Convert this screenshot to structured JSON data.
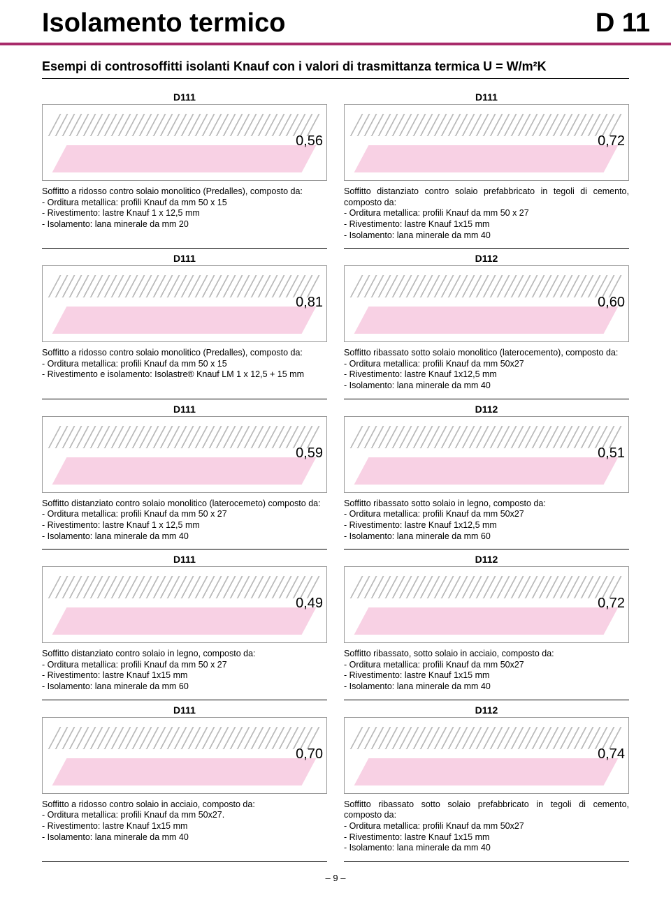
{
  "header": {
    "title": "Isolamento termico",
    "code": "D 11"
  },
  "subtitle": "Esempi di controsoffitti isolanti Knauf con i valori di trasmittanza termica U = W/m²K",
  "rows": [
    {
      "left": {
        "label": "D111",
        "u": "0,56",
        "desc": "Soffitto a ridosso contro solaio monolitico (Predalles), composto da:",
        "items": [
          "- Orditura metallica: profili Knauf da mm 50 x 15",
          "- Rivestimento: lastre Knauf 1 x 12,5 mm",
          "- Isolamento: lana minerale da mm 20"
        ]
      },
      "right": {
        "label": "D111",
        "u": "0,72",
        "desc": "Soffitto distanziato contro solaio prefabbricato in tegoli di cemento, composto da:",
        "items": [
          "- Orditura metallica: profili Knauf da mm 50 x 27",
          "- Rivestimento: lastre Knauf 1x15 mm",
          "- Isolamento: lana minerale da mm 40"
        ]
      }
    },
    {
      "left": {
        "label": "D111",
        "u": "0,81",
        "desc": "Soffitto a ridosso contro solaio monolitico (Predalles), composto da:",
        "items": [
          "- Orditura metallica: profili Knauf da mm 50 x 15",
          "- Rivestimento e isolamento: Isolastre® Knauf LM 1 x 12,5 + 15 mm"
        ]
      },
      "right": {
        "label": "D112",
        "u": "0,60",
        "desc": "Soffitto ribassato sotto solaio monolitico (laterocemento), composto da:",
        "items": [
          "- Orditura metallica: profili Knauf da mm 50x27",
          "- Rivestimento: lastre Knauf 1x12,5 mm",
          "- Isolamento: lana minerale da mm 40"
        ]
      }
    },
    {
      "left": {
        "label": "D111",
        "u": "0,59",
        "desc": "Soffitto distanziato contro solaio monolitico (laterocemeto) composto da:",
        "items": [
          "- Orditura metallica: profili Knauf da mm 50 x 27",
          "- Rivestimento: lastre Knauf 1 x 12,5 mm",
          "- Isolamento: lana minerale da mm 40"
        ]
      },
      "right": {
        "label": "D112",
        "u": "0,51",
        "desc": "Soffitto ribassato sotto solaio in legno, composto da:",
        "items": [
          "- Orditura metallica: profili Knauf da mm 50x27",
          "- Rivestimento: lastre Knauf 1x12,5 mm",
          "- Isolamento: lana minerale da mm 60"
        ]
      }
    },
    {
      "left": {
        "label": "D111",
        "u": "0,49",
        "desc": "Soffitto distanziato contro solaio in legno, composto da:",
        "items": [
          "- Orditura metallica: profili Knauf da mm 50 x 27",
          "- Rivestimento: lastre Knauf 1x15 mm",
          "- Isolamento: lana minerale da mm 60"
        ]
      },
      "right": {
        "label": "D112",
        "u": "0,72",
        "desc": "Soffitto ribassato, sotto solaio in acciaio, composto da:",
        "items": [
          "- Orditura metallica: profili Knauf da mm 50x27",
          "- Rivestimento: lastre Knauf 1x15 mm",
          "- Isolamento: lana minerale da mm 40"
        ]
      }
    },
    {
      "left": {
        "label": "D111",
        "u": "0,70",
        "desc": "Soffitto a ridosso contro solaio in acciaio, composto da:",
        "items": [
          "- Orditura metallica: profili Knauf da mm 50x27.",
          "- Rivestimento: lastre Knauf 1x15 mm",
          "- Isolamento: lana minerale da mm 40"
        ]
      },
      "right": {
        "label": "D112",
        "u": "0,74",
        "desc": "Soffitto ribassato sotto solaio prefabbricato in tegoli di cemento, composto da:",
        "items": [
          "- Orditura metallica: profili Knauf da mm 50x27",
          "- Rivestimento: lastre Knauf 1x15 mm",
          "- Isolamento: lana minerale da mm 40"
        ]
      }
    }
  ],
  "page_number": "– 9 –",
  "colors": {
    "accent": "#a82a6a",
    "insulation": "#f7c9df"
  }
}
